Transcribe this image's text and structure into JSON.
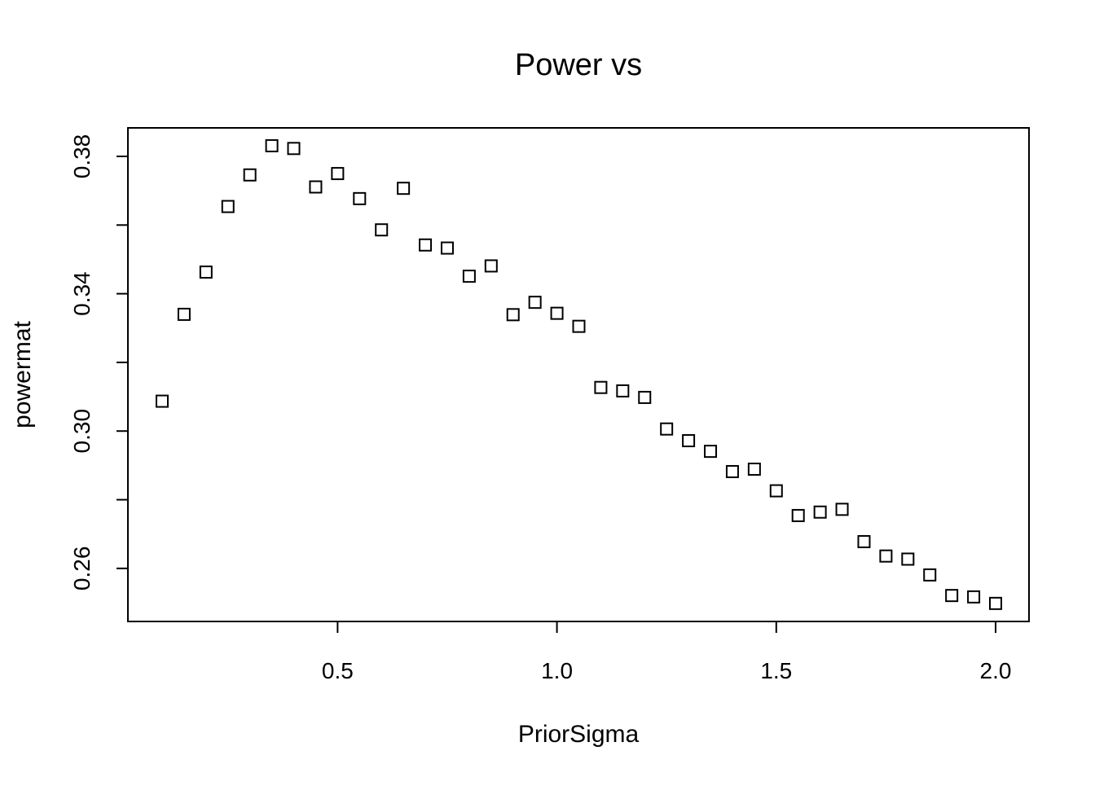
{
  "chart_data": {
    "type": "scatter",
    "title": "Power vs",
    "xlabel": "PriorSigma",
    "ylabel": "powermat",
    "marker": "open-square",
    "color": "#000000",
    "xlim": [
      0.1,
      2.0
    ],
    "ylim": [
      0.25,
      0.38
    ],
    "x_ticks": [
      {
        "value": 0.5,
        "label": "0.5"
      },
      {
        "value": 1.0,
        "label": "1.0"
      },
      {
        "value": 1.5,
        "label": "1.5"
      },
      {
        "value": 2.0,
        "label": "2.0"
      }
    ],
    "y_ticks": [
      {
        "value": 0.26,
        "label": "0.26"
      },
      {
        "value": 0.28,
        "label": ""
      },
      {
        "value": 0.3,
        "label": "0.30"
      },
      {
        "value": 0.32,
        "label": ""
      },
      {
        "value": 0.34,
        "label": "0.34"
      },
      {
        "value": 0.36,
        "label": ""
      },
      {
        "value": 0.38,
        "label": "0.38"
      }
    ],
    "grid": false,
    "legend": "none",
    "x": [
      0.1,
      0.15,
      0.2,
      0.25,
      0.3,
      0.35,
      0.4,
      0.45,
      0.5,
      0.55,
      0.6,
      0.65,
      0.7,
      0.75,
      0.8,
      0.85,
      0.9,
      0.95,
      1.0,
      1.05,
      1.1,
      1.15,
      1.2,
      1.25,
      1.3,
      1.35,
      1.4,
      1.45,
      1.5,
      1.55,
      1.6,
      1.65,
      1.7,
      1.75,
      1.8,
      1.85,
      1.9,
      1.95,
      2.0
    ],
    "y": [
      0.3087,
      0.334,
      0.3463,
      0.3654,
      0.3746,
      0.3831,
      0.3823,
      0.3711,
      0.375,
      0.3677,
      0.3586,
      0.3707,
      0.3542,
      0.3533,
      0.3451,
      0.3481,
      0.3339,
      0.3375,
      0.3343,
      0.3305,
      0.3127,
      0.3117,
      0.3098,
      0.3006,
      0.2972,
      0.2941,
      0.2882,
      0.2889,
      0.2826,
      0.2754,
      0.2764,
      0.2772,
      0.2678,
      0.2636,
      0.2627,
      0.2581,
      0.2521,
      0.2517,
      0.2498
    ]
  }
}
